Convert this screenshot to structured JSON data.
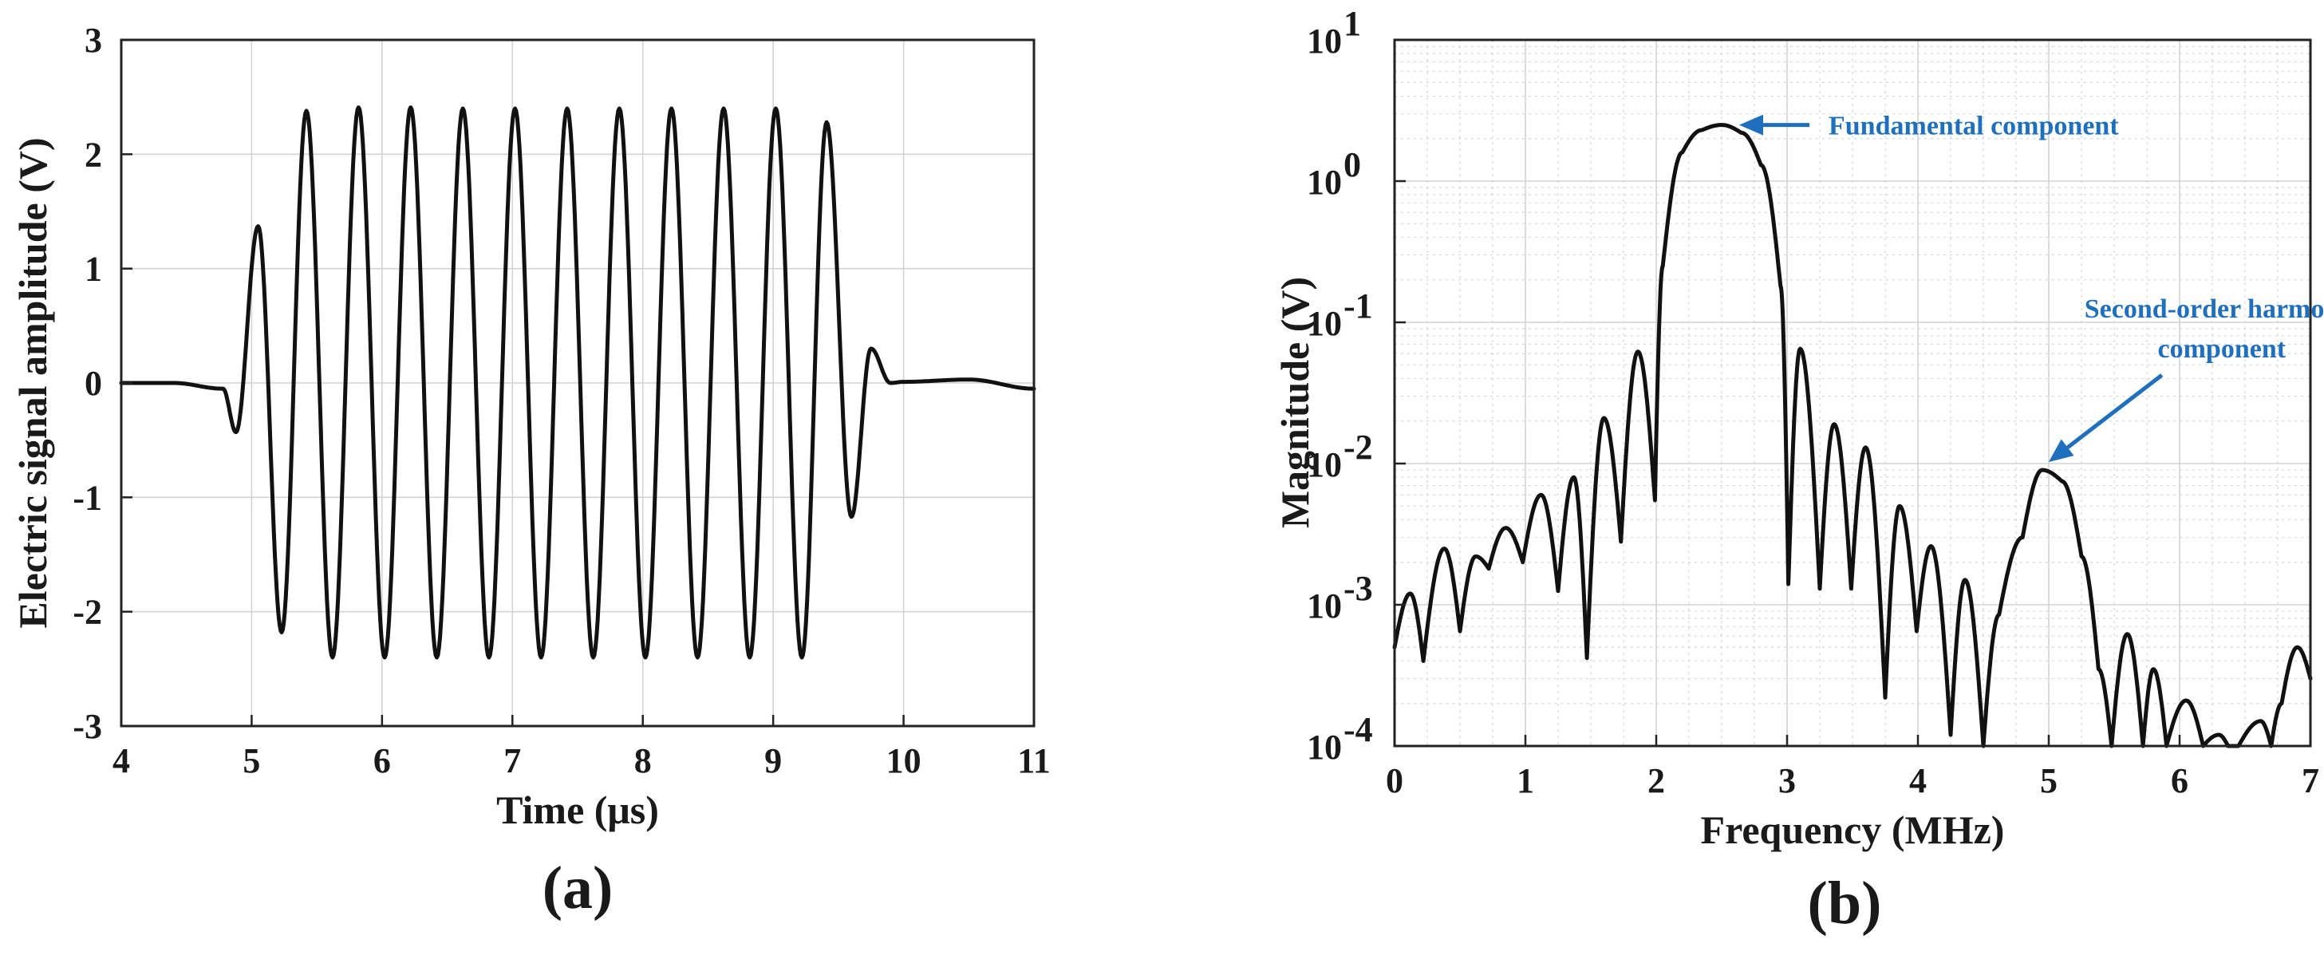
{
  "chart_data": [
    {
      "panel_label": "(a)",
      "type": "line",
      "xlabel": "Time (μs)",
      "ylabel": "Electric signal amplitude (V)",
      "xlim": [
        4,
        11
      ],
      "ylim": [
        -3,
        3
      ],
      "xticks": [
        "4",
        "5",
        "6",
        "7",
        "8",
        "9",
        "10",
        "11"
      ],
      "yticks": [
        "-3",
        "-2",
        "-1",
        "0",
        "1",
        "2",
        "3"
      ],
      "grid": true,
      "series": [
        {
          "x": [
            4.0,
            4.4,
            4.78,
            4.88,
            5.05,
            5.23,
            5.42,
            5.62,
            5.82,
            6.02,
            6.22,
            6.42,
            6.62,
            6.82,
            7.02,
            7.22,
            7.42,
            7.62,
            7.82,
            8.02,
            8.22,
            8.42,
            8.62,
            8.82,
            9.02,
            9.22,
            9.41,
            9.6,
            9.75,
            9.9,
            10.0,
            10.5,
            11.0
          ],
          "y": [
            0.0,
            0.0,
            -0.05,
            -0.43,
            1.37,
            -2.18,
            2.38,
            -2.4,
            2.41,
            -2.4,
            2.41,
            -2.4,
            2.4,
            -2.4,
            2.4,
            -2.4,
            2.4,
            -2.4,
            2.4,
            -2.4,
            2.4,
            -2.4,
            2.4,
            -2.4,
            2.4,
            -2.4,
            2.28,
            -1.17,
            0.3,
            0.0,
            0.01,
            0.03,
            -0.05
          ]
        }
      ]
    },
    {
      "panel_label": "(b)",
      "type": "line",
      "xlabel": "Frequency (MHz)",
      "ylabel": "Magnitude (V)",
      "xlim": [
        0,
        7
      ],
      "ylim": [
        0.0001,
        10
      ],
      "yscale": "log",
      "xticks": [
        "0",
        "1",
        "2",
        "3",
        "4",
        "5",
        "6",
        "7"
      ],
      "yticks": [
        {
          "base": "10",
          "exp": "-4"
        },
        {
          "base": "10",
          "exp": "-3"
        },
        {
          "base": "10",
          "exp": "-2"
        },
        {
          "base": "10",
          "exp": "-1"
        },
        {
          "base": "10",
          "exp": "0"
        },
        {
          "base": "10",
          "exp": "1"
        }
      ],
      "grid": true,
      "annotations": [
        {
          "lines": [
            "Fundamental component"
          ],
          "x": 2.5,
          "y": 2.5
        },
        {
          "lines": [
            "Second-order harmonic",
            "component"
          ],
          "x": 4.95,
          "y": 0.009
        }
      ],
      "series": [
        {
          "x": [
            0.0,
            0.12,
            0.22,
            0.38,
            0.5,
            0.62,
            0.72,
            0.85,
            0.98,
            1.12,
            1.25,
            1.37,
            1.47,
            1.6,
            1.73,
            1.86,
            1.99,
            2.05,
            2.2,
            2.35,
            2.5,
            2.65,
            2.8,
            2.95,
            3.01,
            3.1,
            3.25,
            3.36,
            3.49,
            3.6,
            3.75,
            3.86,
            3.99,
            4.1,
            4.25,
            4.36,
            4.5,
            4.62,
            4.8,
            4.95,
            5.1,
            5.25,
            5.38,
            5.48,
            5.6,
            5.72,
            5.8,
            5.9,
            6.05,
            6.18,
            6.3,
            6.37,
            6.45,
            6.62,
            6.7,
            6.78,
            6.9,
            7.0
          ],
          "y": [
            0.0005,
            0.0012,
            0.0004,
            0.0025,
            0.00065,
            0.0022,
            0.0018,
            0.0035,
            0.002,
            0.006,
            0.00125,
            0.008,
            0.00042,
            0.021,
            0.0028,
            0.062,
            0.0055,
            0.25,
            1.6,
            2.3,
            2.5,
            2.2,
            1.3,
            0.18,
            0.0014,
            0.065,
            0.0013,
            0.019,
            0.0013,
            0.013,
            0.00022,
            0.005,
            0.00065,
            0.0026,
            0.00012,
            0.0015,
            0.0001,
            0.00085,
            0.003,
            0.009,
            0.0075,
            0.0022,
            0.00035,
            0.0001,
            0.00062,
            0.0001,
            0.00035,
            0.0001,
            0.00021,
            0.0001,
            0.00012,
            0.0001,
            0.0001,
            0.00015,
            0.0001,
            0.0002,
            0.0005,
            0.0003
          ]
        }
      ]
    }
  ]
}
